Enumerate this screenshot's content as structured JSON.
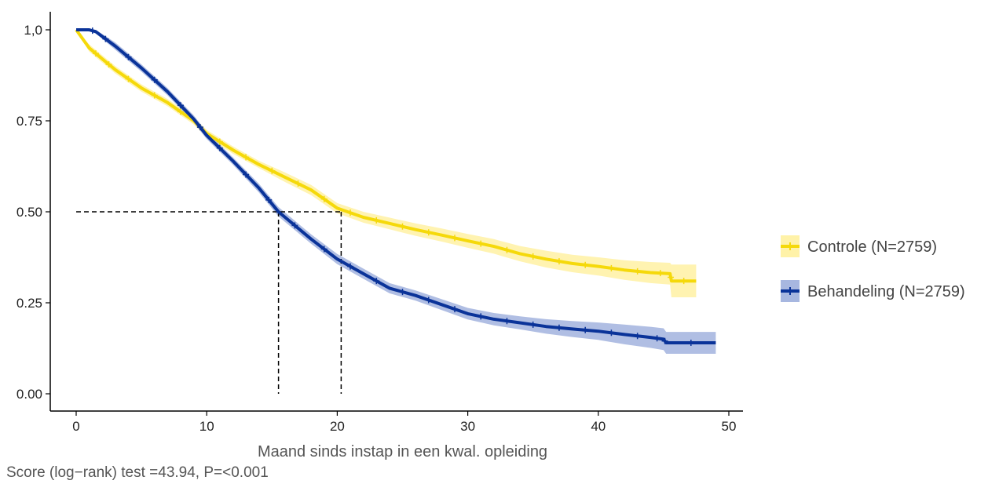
{
  "chart_data": {
    "type": "line",
    "title": "",
    "xlabel": "Maand sinds instap in een kwal. opleiding",
    "ylabel": "",
    "xlim": [
      0,
      50
    ],
    "ylim": [
      0,
      1
    ],
    "x_ticks": [
      0,
      10,
      20,
      30,
      40,
      50
    ],
    "x_tick_labels": [
      "0",
      "10",
      "20",
      "30",
      "40",
      "50"
    ],
    "y_ticks": [
      0,
      0.25,
      0.5,
      0.75,
      1.0
    ],
    "y_tick_labels": [
      "0.00",
      "0.25",
      "0.50",
      "0.75",
      "1,0"
    ],
    "grid": false,
    "legend_position": "right",
    "median_line": {
      "y": 0.5,
      "medians_x": [
        15.5,
        20.3
      ]
    },
    "series": [
      {
        "name": "Controle (N=2759)",
        "color": "#F5D90A",
        "band_color": "#FFF2A8",
        "x": [
          0,
          1,
          2,
          3,
          5,
          7,
          9,
          10,
          12,
          14,
          16,
          18,
          20,
          22,
          24,
          26,
          28,
          30,
          32,
          34,
          36,
          38,
          40,
          42,
          44,
          45.5,
          45.6,
          47.5
        ],
        "y": [
          1.0,
          0.95,
          0.92,
          0.89,
          0.84,
          0.8,
          0.75,
          0.715,
          0.67,
          0.63,
          0.595,
          0.56,
          0.51,
          0.485,
          0.468,
          0.451,
          0.436,
          0.42,
          0.405,
          0.385,
          0.37,
          0.358,
          0.35,
          0.34,
          0.333,
          0.33,
          0.31,
          0.31
        ],
        "lower": [
          1.0,
          0.94,
          0.91,
          0.88,
          0.83,
          0.79,
          0.74,
          0.705,
          0.66,
          0.62,
          0.582,
          0.546,
          0.496,
          0.47,
          0.452,
          0.434,
          0.418,
          0.401,
          0.385,
          0.364,
          0.347,
          0.334,
          0.325,
          0.313,
          0.304,
          0.3,
          0.265,
          0.265
        ],
        "upper": [
          1.0,
          0.96,
          0.93,
          0.9,
          0.85,
          0.81,
          0.76,
          0.725,
          0.68,
          0.64,
          0.608,
          0.574,
          0.524,
          0.5,
          0.484,
          0.468,
          0.454,
          0.439,
          0.425,
          0.406,
          0.393,
          0.382,
          0.375,
          0.367,
          0.362,
          0.36,
          0.355,
          0.355
        ]
      },
      {
        "name": "Behandeling (N=2759)",
        "color": "#0A3399",
        "band_color": "#A7B7E0",
        "x": [
          0,
          1,
          1.5,
          3,
          5,
          7,
          9,
          10,
          12,
          14,
          15.5,
          18,
          20,
          22,
          24,
          26,
          28,
          30,
          32,
          34,
          36,
          38,
          40,
          42,
          44,
          45,
          45.2,
          49
        ],
        "y": [
          1.0,
          1.0,
          0.995,
          0.955,
          0.895,
          0.83,
          0.755,
          0.71,
          0.64,
          0.565,
          0.5,
          0.425,
          0.37,
          0.33,
          0.29,
          0.27,
          0.245,
          0.22,
          0.205,
          0.195,
          0.185,
          0.178,
          0.172,
          0.163,
          0.155,
          0.15,
          0.14,
          0.14
        ],
        "lower": [
          1.0,
          0.995,
          0.99,
          0.945,
          0.885,
          0.82,
          0.745,
          0.7,
          0.63,
          0.553,
          0.487,
          0.412,
          0.356,
          0.316,
          0.276,
          0.256,
          0.23,
          0.204,
          0.188,
          0.177,
          0.165,
          0.156,
          0.148,
          0.136,
          0.126,
          0.12,
          0.11,
          0.11
        ],
        "upper": [
          1.0,
          1.0,
          1.0,
          0.965,
          0.905,
          0.84,
          0.765,
          0.72,
          0.65,
          0.577,
          0.513,
          0.438,
          0.384,
          0.344,
          0.304,
          0.284,
          0.26,
          0.236,
          0.222,
          0.213,
          0.205,
          0.2,
          0.196,
          0.19,
          0.184,
          0.18,
          0.17,
          0.17
        ]
      }
    ]
  },
  "caption": "Score (log−rank) test =43.94, P=<0.001"
}
